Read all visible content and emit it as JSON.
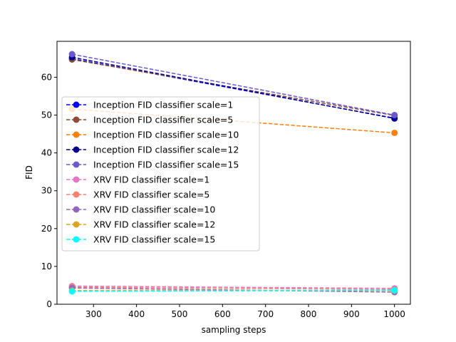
{
  "chart_data": {
    "type": "line",
    "title": "",
    "xlabel": "sampling steps",
    "ylabel": "FID",
    "xlim": [
      215,
      1037
    ],
    "ylim": [
      0,
      69.5
    ],
    "xticks": [
      300,
      400,
      500,
      600,
      700,
      800,
      900,
      1000
    ],
    "yticks": [
      0,
      10,
      20,
      30,
      40,
      50,
      60
    ],
    "grid": false,
    "legend_position": "center-left",
    "x": [
      250,
      1000
    ],
    "series": [
      {
        "name": "Inception FID classifier scale=1",
        "color": "#0000ff",
        "values": [
          64.9,
          49.2
        ]
      },
      {
        "name": "Inception FID classifier scale=5",
        "color": "#8b4a3c",
        "values": [
          64.7,
          49.9
        ]
      },
      {
        "name": "Inception FID classifier scale=10",
        "color": "#ff7f0e",
        "values": [
          51.6,
          45.3
        ]
      },
      {
        "name": "Inception FID classifier scale=12",
        "color": "#00008b",
        "values": [
          65.3,
          49.1
        ]
      },
      {
        "name": "Inception FID classifier scale=15",
        "color": "#6a5acd",
        "values": [
          66.1,
          50.0
        ]
      },
      {
        "name": "XRV FID classifier scale=1",
        "color": "#e377c2",
        "values": [
          4.8,
          4.2
        ]
      },
      {
        "name": "XRV FID classifier scale=5",
        "color": "#fa8072",
        "values": [
          4.5,
          3.9
        ]
      },
      {
        "name": "XRV FID classifier scale=10",
        "color": "#9467bd",
        "values": [
          4.3,
          3.2
        ]
      },
      {
        "name": "XRV FID classifier scale=12",
        "color": "#daa520",
        "values": [
          3.6,
          3.6
        ]
      },
      {
        "name": "XRV FID classifier scale=15",
        "color": "#00ffff",
        "values": [
          3.4,
          3.7
        ]
      }
    ]
  }
}
